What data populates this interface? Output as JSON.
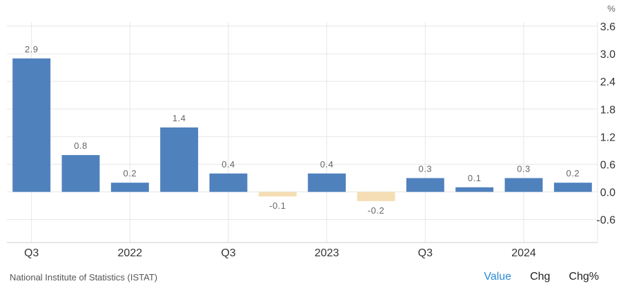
{
  "chart_data": {
    "type": "bar",
    "unit_label": "%",
    "categories": [
      "2021-Q3",
      "2021-Q4",
      "2022-Q1",
      "2022-Q2",
      "2022-Q3",
      "2022-Q4",
      "2023-Q1",
      "2023-Q2",
      "2023-Q3",
      "2023-Q4",
      "2024-Q1",
      "2024-Q2"
    ],
    "values": [
      2.9,
      0.8,
      0.2,
      1.4,
      0.4,
      -0.1,
      0.4,
      -0.2,
      0.3,
      0.1,
      0.3,
      0.2
    ],
    "data_labels": [
      "2.9",
      "0.8",
      "0.2",
      "1.4",
      "0.4",
      "-0.1",
      "0.4",
      "-0.2",
      "0.3",
      "0.1",
      "0.3",
      "0.2"
    ],
    "x_tick_labels": [
      {
        "index": 0,
        "label": "Q3"
      },
      {
        "index": 2,
        "label": "2022"
      },
      {
        "index": 4,
        "label": "Q3"
      },
      {
        "index": 6,
        "label": "2023"
      },
      {
        "index": 8,
        "label": "Q3"
      },
      {
        "index": 10,
        "label": "2024"
      }
    ],
    "y_ticks": [
      3.6,
      3.0,
      2.4,
      1.8,
      1.2,
      0.6,
      0.0,
      -0.6
    ],
    "y_tick_labels": [
      "3.6",
      "3.0",
      "2.4",
      "1.8",
      "1.2",
      "0.6",
      "0.0",
      "-0.6"
    ],
    "ylim": [
      -1.1,
      3.6
    ],
    "grid": true,
    "y_axis_position": "right",
    "colors": {
      "positive": "#4f81bd",
      "negative": "#f5deb3",
      "grid": "#e6e6e6",
      "label": "#666666"
    }
  },
  "footer": {
    "source": "National Institute of Statistics (ISTAT)",
    "tabs": [
      {
        "label": "Value",
        "active": true
      },
      {
        "label": "Chg",
        "active": false
      },
      {
        "label": "Chg%",
        "active": false
      }
    ]
  }
}
